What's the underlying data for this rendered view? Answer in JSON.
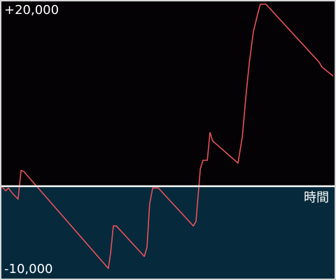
{
  "chart_data": {
    "type": "line",
    "x_label": "時間",
    "x": [
      0,
      1.3,
      2.1,
      3.4,
      5.0,
      5.9,
      6.7,
      32.1,
      32.8,
      33.6,
      34.5,
      42.9,
      43.7,
      44.5,
      45.4,
      47.1,
      57.6,
      58.4,
      59.7,
      60.5,
      61.8,
      62.6,
      63.4,
      71.0,
      72.3,
      73.5,
      74.4,
      75.6,
      76.9,
      77.7,
      79.4,
      95.4,
      96.2,
      99.6
    ],
    "xlim": [
      0,
      100
    ],
    "series": [
      {
        "color": "#e8505a",
        "values": [
          0,
          -500,
          -200,
          -800,
          -1400,
          1700,
          1600,
          -8900,
          -7200,
          -4300,
          -4300,
          -7600,
          -6600,
          -1900,
          -200,
          -200,
          -4300,
          -3800,
          1900,
          2800,
          2800,
          5800,
          4900,
          2500,
          5300,
          10200,
          13300,
          16700,
          18600,
          19700,
          19700,
          13400,
          12900,
          11900
        ]
      }
    ],
    "ylim": [
      -10000,
      20000
    ],
    "yticks": [
      {
        "value": 20000,
        "label": "+20,000"
      },
      {
        "value": -10000,
        "label": "-10,000"
      }
    ]
  }
}
